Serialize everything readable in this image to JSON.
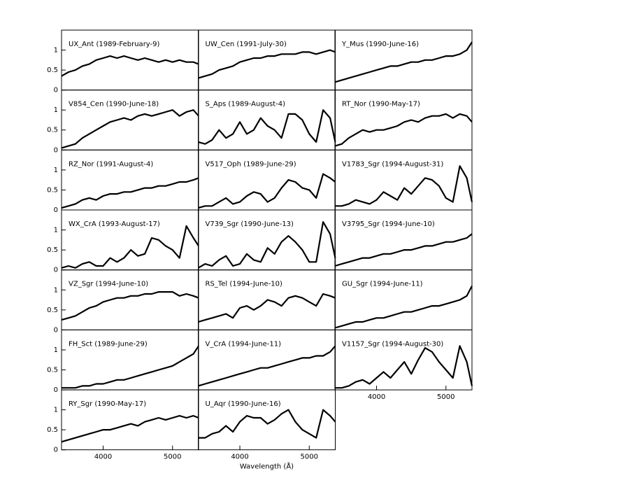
{
  "chart_data": [
    {
      "type": "line",
      "title": "UX_Ant (1989-February-9)",
      "x": [
        3400,
        3500,
        3600,
        3700,
        3800,
        3900,
        4000,
        4100,
        4200,
        4300,
        4400,
        4500,
        4600,
        4700,
        4800,
        4900,
        5000,
        5100,
        5200,
        5300,
        5375
      ],
      "values": [
        0.35,
        0.45,
        0.5,
        0.6,
        0.65,
        0.75,
        0.8,
        0.85,
        0.8,
        0.85,
        0.8,
        0.75,
        0.8,
        0.75,
        0.7,
        0.75,
        0.7,
        0.75,
        0.7,
        0.7,
        0.65
      ],
      "xlim": [
        3400,
        5375
      ],
      "ylim": [
        0,
        1.5
      ],
      "yticks": [
        0.0,
        0.5,
        1.0
      ]
    },
    {
      "type": "line",
      "title": "UW_Cen (1991-July-30)",
      "x": [
        3400,
        3500,
        3600,
        3700,
        3800,
        3900,
        4000,
        4100,
        4200,
        4300,
        4400,
        4500,
        4600,
        4700,
        4800,
        4900,
        5000,
        5100,
        5200,
        5300,
        5375
      ],
      "values": [
        0.3,
        0.35,
        0.4,
        0.5,
        0.55,
        0.6,
        0.7,
        0.75,
        0.8,
        0.8,
        0.85,
        0.85,
        0.9,
        0.9,
        0.9,
        0.95,
        0.95,
        0.9,
        0.95,
        1.0,
        0.95
      ],
      "xlim": [
        3400,
        5375
      ],
      "ylim": [
        0,
        1.5
      ]
    },
    {
      "type": "line",
      "title": "Y_Mus (1990-June-16)",
      "x": [
        3400,
        3500,
        3600,
        3700,
        3800,
        3900,
        4000,
        4100,
        4200,
        4300,
        4400,
        4500,
        4600,
        4700,
        4800,
        4900,
        5000,
        5100,
        5200,
        5300,
        5375
      ],
      "values": [
        0.2,
        0.25,
        0.3,
        0.35,
        0.4,
        0.45,
        0.5,
        0.55,
        0.6,
        0.6,
        0.65,
        0.7,
        0.7,
        0.75,
        0.75,
        0.8,
        0.85,
        0.85,
        0.9,
        1.0,
        1.2
      ],
      "xlim": [
        3400,
        5375
      ],
      "ylim": [
        0,
        1.5
      ]
    },
    {
      "type": "line",
      "title": "V854_Cen (1990-June-18)",
      "x": [
        3400,
        3500,
        3600,
        3700,
        3800,
        3900,
        4000,
        4100,
        4200,
        4300,
        4400,
        4500,
        4600,
        4700,
        4800,
        4900,
        5000,
        5100,
        5200,
        5300,
        5375
      ],
      "values": [
        0.05,
        0.1,
        0.15,
        0.3,
        0.4,
        0.5,
        0.6,
        0.7,
        0.75,
        0.8,
        0.75,
        0.85,
        0.9,
        0.85,
        0.9,
        0.95,
        1.0,
        0.85,
        0.95,
        1.0,
        0.85
      ],
      "xlim": [
        3400,
        5375
      ],
      "ylim": [
        0,
        1.5
      ],
      "yticks": [
        0.0,
        0.5,
        1.0
      ]
    },
    {
      "type": "line",
      "title": "S_Aps (1989-August-4)",
      "x": [
        3400,
        3500,
        3600,
        3700,
        3800,
        3900,
        4000,
        4100,
        4200,
        4300,
        4400,
        4500,
        4600,
        4700,
        4800,
        4900,
        5000,
        5100,
        5200,
        5300,
        5375
      ],
      "values": [
        0.2,
        0.15,
        0.25,
        0.5,
        0.3,
        0.4,
        0.7,
        0.4,
        0.5,
        0.8,
        0.6,
        0.5,
        0.3,
        0.9,
        0.9,
        0.75,
        0.4,
        0.2,
        1.0,
        0.8,
        0.2
      ],
      "xlim": [
        3400,
        5375
      ],
      "ylim": [
        0,
        1.5
      ]
    },
    {
      "type": "line",
      "title": "RT_Nor (1990-May-17)",
      "x": [
        3400,
        3500,
        3600,
        3700,
        3800,
        3900,
        4000,
        4100,
        4200,
        4300,
        4400,
        4500,
        4600,
        4700,
        4800,
        4900,
        5000,
        5100,
        5200,
        5300,
        5375
      ],
      "values": [
        0.1,
        0.15,
        0.3,
        0.4,
        0.5,
        0.45,
        0.5,
        0.5,
        0.55,
        0.6,
        0.7,
        0.75,
        0.7,
        0.8,
        0.85,
        0.85,
        0.9,
        0.8,
        0.9,
        0.85,
        0.7
      ],
      "xlim": [
        3400,
        5375
      ],
      "ylim": [
        0,
        1.5
      ]
    },
    {
      "type": "line",
      "title": "RZ_Nor (1991-August-4)",
      "x": [
        3400,
        3500,
        3600,
        3700,
        3800,
        3900,
        4000,
        4100,
        4200,
        4300,
        4400,
        4500,
        4600,
        4700,
        4800,
        4900,
        5000,
        5100,
        5200,
        5300,
        5375
      ],
      "values": [
        0.05,
        0.1,
        0.15,
        0.25,
        0.3,
        0.25,
        0.35,
        0.4,
        0.4,
        0.45,
        0.45,
        0.5,
        0.55,
        0.55,
        0.6,
        0.6,
        0.65,
        0.7,
        0.7,
        0.75,
        0.8
      ],
      "xlim": [
        3400,
        5375
      ],
      "ylim": [
        0,
        1.5
      ],
      "yticks": [
        0.0,
        0.5,
        1.0
      ]
    },
    {
      "type": "line",
      "title": "V517_Oph (1989-June-29)",
      "x": [
        3400,
        3500,
        3600,
        3700,
        3800,
        3900,
        4000,
        4100,
        4200,
        4300,
        4400,
        4500,
        4600,
        4700,
        4800,
        4900,
        5000,
        5100,
        5200,
        5300,
        5375
      ],
      "values": [
        0.05,
        0.1,
        0.1,
        0.2,
        0.3,
        0.15,
        0.2,
        0.35,
        0.45,
        0.4,
        0.2,
        0.3,
        0.55,
        0.75,
        0.7,
        0.55,
        0.5,
        0.3,
        0.9,
        0.8,
        0.7
      ],
      "xlim": [
        3400,
        5375
      ],
      "ylim": [
        0,
        1.5
      ]
    },
    {
      "type": "line",
      "title": "V1783_Sgr (1994-August-31)",
      "x": [
        3400,
        3500,
        3600,
        3700,
        3800,
        3900,
        4000,
        4100,
        4200,
        4300,
        4400,
        4500,
        4600,
        4700,
        4800,
        4900,
        5000,
        5100,
        5200,
        5300,
        5375
      ],
      "values": [
        0.1,
        0.1,
        0.15,
        0.25,
        0.2,
        0.15,
        0.25,
        0.45,
        0.35,
        0.25,
        0.55,
        0.4,
        0.6,
        0.8,
        0.75,
        0.6,
        0.3,
        0.2,
        1.1,
        0.8,
        0.2
      ],
      "xlim": [
        3400,
        5375
      ],
      "ylim": [
        0,
        1.5
      ]
    },
    {
      "type": "line",
      "title": "WX_CrA (1993-August-17)",
      "x": [
        3400,
        3500,
        3600,
        3700,
        3800,
        3900,
        4000,
        4100,
        4200,
        4300,
        4400,
        4500,
        4600,
        4700,
        4800,
        4900,
        5000,
        5100,
        5200,
        5300,
        5375
      ],
      "values": [
        0.05,
        0.1,
        0.05,
        0.15,
        0.2,
        0.1,
        0.1,
        0.3,
        0.2,
        0.3,
        0.5,
        0.35,
        0.4,
        0.8,
        0.75,
        0.6,
        0.5,
        0.3,
        1.1,
        0.8,
        0.6
      ],
      "xlim": [
        3400,
        5375
      ],
      "ylim": [
        0,
        1.5
      ],
      "yticks": [
        0.0,
        0.5,
        1.0
      ]
    },
    {
      "type": "line",
      "title": "V739_Sgr (1990-June-13)",
      "x": [
        3400,
        3500,
        3600,
        3700,
        3800,
        3900,
        4000,
        4100,
        4200,
        4300,
        4400,
        4500,
        4600,
        4700,
        4800,
        4900,
        5000,
        5100,
        5200,
        5300,
        5375
      ],
      "values": [
        0.05,
        0.15,
        0.1,
        0.25,
        0.35,
        0.1,
        0.15,
        0.4,
        0.25,
        0.2,
        0.55,
        0.4,
        0.7,
        0.85,
        0.7,
        0.5,
        0.2,
        0.2,
        1.2,
        0.9,
        0.3
      ],
      "xlim": [
        3400,
        5375
      ],
      "ylim": [
        0,
        1.5
      ]
    },
    {
      "type": "line",
      "title": "V3795_Sgr (1994-June-10)",
      "x": [
        3400,
        3500,
        3600,
        3700,
        3800,
        3900,
        4000,
        4100,
        4200,
        4300,
        4400,
        4500,
        4600,
        4700,
        4800,
        4900,
        5000,
        5100,
        5200,
        5300,
        5375
      ],
      "values": [
        0.1,
        0.15,
        0.2,
        0.25,
        0.3,
        0.3,
        0.35,
        0.4,
        0.4,
        0.45,
        0.5,
        0.5,
        0.55,
        0.6,
        0.6,
        0.65,
        0.7,
        0.7,
        0.75,
        0.8,
        0.9
      ],
      "xlim": [
        3400,
        5375
      ],
      "ylim": [
        0,
        1.5
      ]
    },
    {
      "type": "line",
      "title": "VZ_Sgr (1994-June-10)",
      "x": [
        3400,
        3500,
        3600,
        3700,
        3800,
        3900,
        4000,
        4100,
        4200,
        4300,
        4400,
        4500,
        4600,
        4700,
        4800,
        4900,
        5000,
        5100,
        5200,
        5300,
        5375
      ],
      "values": [
        0.25,
        0.3,
        0.35,
        0.45,
        0.55,
        0.6,
        0.7,
        0.75,
        0.8,
        0.8,
        0.85,
        0.85,
        0.9,
        0.9,
        0.95,
        0.95,
        0.95,
        0.85,
        0.9,
        0.85,
        0.8
      ],
      "xlim": [
        3400,
        5375
      ],
      "ylim": [
        0,
        1.5
      ],
      "yticks": [
        0.0,
        0.5,
        1.0
      ]
    },
    {
      "type": "line",
      "title": "RS_Tel (1994-June-10)",
      "x": [
        3400,
        3500,
        3600,
        3700,
        3800,
        3900,
        4000,
        4100,
        4200,
        4300,
        4400,
        4500,
        4600,
        4700,
        4800,
        4900,
        5000,
        5100,
        5200,
        5300,
        5375
      ],
      "values": [
        0.2,
        0.25,
        0.3,
        0.35,
        0.4,
        0.3,
        0.55,
        0.6,
        0.5,
        0.6,
        0.75,
        0.7,
        0.6,
        0.8,
        0.85,
        0.8,
        0.7,
        0.6,
        0.9,
        0.85,
        0.8
      ],
      "xlim": [
        3400,
        5375
      ],
      "ylim": [
        0,
        1.5
      ]
    },
    {
      "type": "line",
      "title": "GU_Sgr (1994-June-11)",
      "x": [
        3400,
        3500,
        3600,
        3700,
        3800,
        3900,
        4000,
        4100,
        4200,
        4300,
        4400,
        4500,
        4600,
        4700,
        4800,
        4900,
        5000,
        5100,
        5200,
        5300,
        5375
      ],
      "values": [
        0.05,
        0.1,
        0.15,
        0.2,
        0.2,
        0.25,
        0.3,
        0.3,
        0.35,
        0.4,
        0.45,
        0.45,
        0.5,
        0.55,
        0.6,
        0.6,
        0.65,
        0.7,
        0.75,
        0.85,
        1.1
      ],
      "xlim": [
        3400,
        5375
      ],
      "ylim": [
        0,
        1.5
      ]
    },
    {
      "type": "line",
      "title": "FH_Sct (1989-June-29)",
      "x": [
        3400,
        3500,
        3600,
        3700,
        3800,
        3900,
        4000,
        4100,
        4200,
        4300,
        4400,
        4500,
        4600,
        4700,
        4800,
        4900,
        5000,
        5100,
        5200,
        5300,
        5375
      ],
      "values": [
        0.05,
        0.05,
        0.05,
        0.1,
        0.1,
        0.15,
        0.15,
        0.2,
        0.25,
        0.25,
        0.3,
        0.35,
        0.4,
        0.45,
        0.5,
        0.55,
        0.6,
        0.7,
        0.8,
        0.9,
        1.1
      ],
      "xlim": [
        3400,
        5375
      ],
      "ylim": [
        0,
        1.5
      ],
      "yticks": [
        0.0,
        0.5,
        1.0
      ]
    },
    {
      "type": "line",
      "title": "V_CrA (1994-June-11)",
      "x": [
        3400,
        3500,
        3600,
        3700,
        3800,
        3900,
        4000,
        4100,
        4200,
        4300,
        4400,
        4500,
        4600,
        4700,
        4800,
        4900,
        5000,
        5100,
        5200,
        5300,
        5375
      ],
      "values": [
        0.1,
        0.15,
        0.2,
        0.25,
        0.3,
        0.35,
        0.4,
        0.45,
        0.5,
        0.55,
        0.55,
        0.6,
        0.65,
        0.7,
        0.75,
        0.8,
        0.8,
        0.85,
        0.85,
        0.95,
        1.1
      ],
      "xlim": [
        3400,
        5375
      ],
      "ylim": [
        0,
        1.5
      ]
    },
    {
      "type": "line",
      "title": "V1157_Sgr (1994-August-30)",
      "x": [
        3400,
        3500,
        3600,
        3700,
        3800,
        3900,
        4000,
        4100,
        4200,
        4300,
        4400,
        4500,
        4600,
        4700,
        4800,
        4900,
        5000,
        5100,
        5200,
        5300,
        5375
      ],
      "values": [
        0.05,
        0.05,
        0.1,
        0.2,
        0.25,
        0.15,
        0.3,
        0.45,
        0.3,
        0.5,
        0.7,
        0.4,
        0.75,
        1.05,
        0.95,
        0.7,
        0.5,
        0.3,
        1.1,
        0.7,
        0.1
      ],
      "xlim": [
        3400,
        5375
      ],
      "ylim": [
        0,
        1.5
      ],
      "xticks": [
        4000,
        5000
      ]
    },
    {
      "type": "line",
      "title": "RY_Sgr (1990-May-17)",
      "x": [
        3400,
        3500,
        3600,
        3700,
        3800,
        3900,
        4000,
        4100,
        4200,
        4300,
        4400,
        4500,
        4600,
        4700,
        4800,
        4900,
        5000,
        5100,
        5200,
        5300,
        5375
      ],
      "values": [
        0.2,
        0.25,
        0.3,
        0.35,
        0.4,
        0.45,
        0.5,
        0.5,
        0.55,
        0.6,
        0.65,
        0.6,
        0.7,
        0.75,
        0.8,
        0.75,
        0.8,
        0.85,
        0.8,
        0.85,
        0.8
      ],
      "xlim": [
        3400,
        5375
      ],
      "ylim": [
        0,
        1.5
      ],
      "yticks": [
        0.0,
        0.5,
        1.0
      ],
      "xticks": [
        4000,
        5000
      ]
    },
    {
      "type": "line",
      "title": "U_Aqr (1990-June-16)",
      "x": [
        3400,
        3500,
        3600,
        3700,
        3800,
        3900,
        4000,
        4100,
        4200,
        4300,
        4400,
        4500,
        4600,
        4700,
        4800,
        4900,
        5000,
        5100,
        5200,
        5300,
        5375
      ],
      "values": [
        0.3,
        0.3,
        0.4,
        0.45,
        0.6,
        0.45,
        0.7,
        0.85,
        0.8,
        0.8,
        0.65,
        0.75,
        0.9,
        1.0,
        0.7,
        0.5,
        0.4,
        0.3,
        1.0,
        0.85,
        0.7
      ],
      "xlim": [
        3400,
        5375
      ],
      "ylim": [
        0,
        1.5
      ],
      "xticks": [
        4000,
        5000
      ],
      "xlabel": "Wavelength (Å)"
    }
  ]
}
